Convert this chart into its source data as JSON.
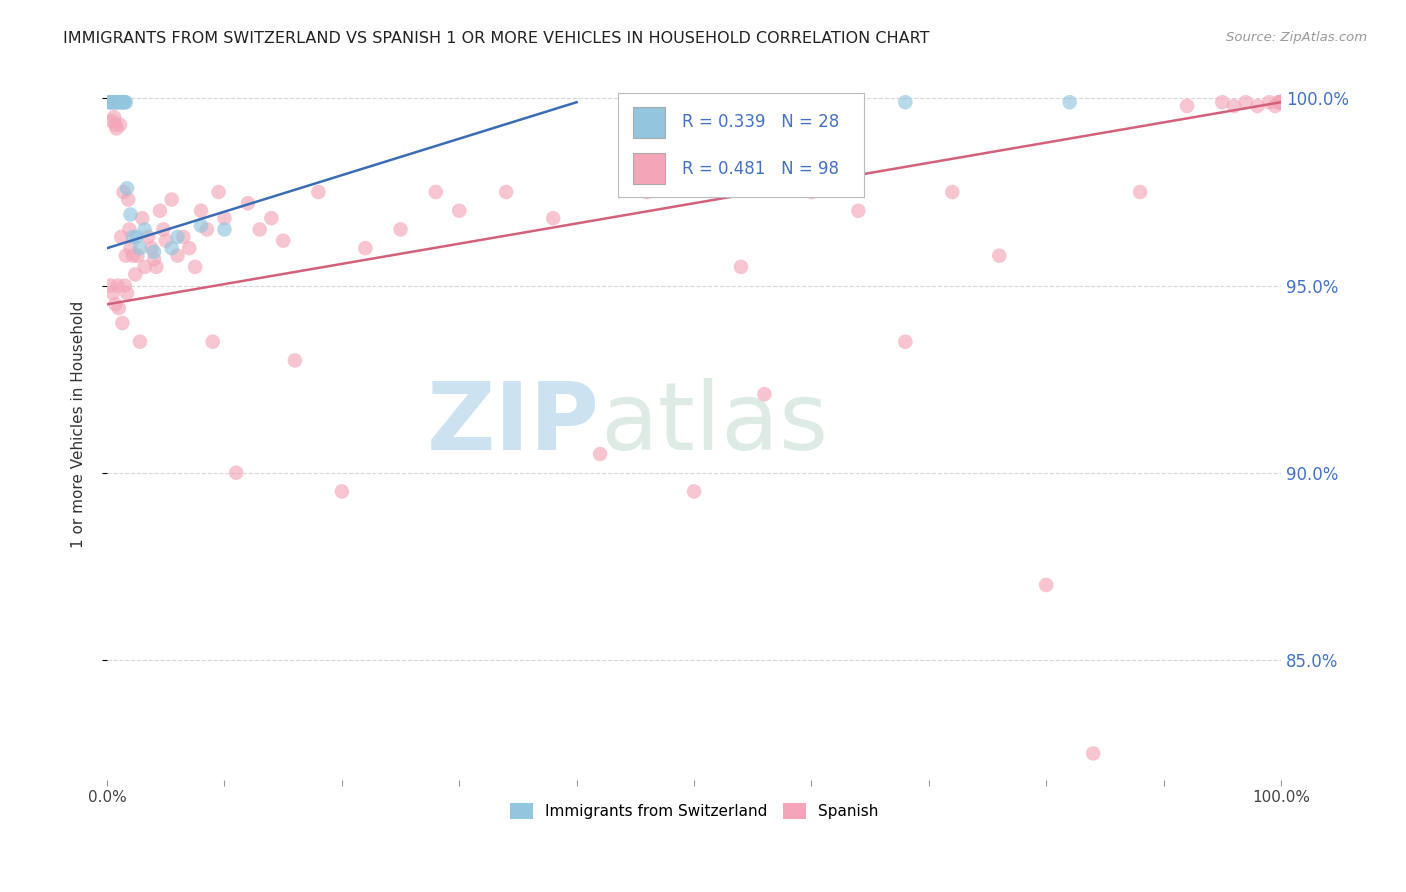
{
  "title": "IMMIGRANTS FROM SWITZERLAND VS SPANISH 1 OR MORE VEHICLES IN HOUSEHOLD CORRELATION CHART",
  "source": "Source: ZipAtlas.com",
  "ylabel": "1 or more Vehicles in Household",
  "xlim": [
    0.0,
    1.0
  ],
  "ylim": [
    0.818,
    1.008
  ],
  "yticks": [
    0.85,
    0.9,
    0.95,
    1.0
  ],
  "ytick_labels": [
    "85.0%",
    "90.0%",
    "95.0%",
    "100.0%"
  ],
  "blue_R": 0.339,
  "blue_N": 28,
  "pink_R": 0.481,
  "pink_N": 98,
  "blue_color": "#92c5de",
  "pink_color": "#f4a6b8",
  "blue_line_color": "#3a6db5",
  "pink_line_color": "#d4607a",
  "background_color": "white",
  "grid_color": "#cccccc",
  "blue_scatter_x": [
    0.002,
    0.003,
    0.004,
    0.005,
    0.006,
    0.007,
    0.008,
    0.009,
    0.01,
    0.011,
    0.012,
    0.013,
    0.014,
    0.015,
    0.016,
    0.017,
    0.02,
    0.022,
    0.025,
    0.028,
    0.032,
    0.04,
    0.055,
    0.06,
    0.08,
    0.1,
    0.68,
    0.82
  ],
  "blue_scatter_y": [
    0.999,
    0.999,
    0.999,
    0.999,
    0.999,
    0.999,
    0.999,
    0.999,
    0.999,
    0.999,
    0.999,
    0.999,
    0.999,
    0.999,
    0.999,
    0.976,
    0.969,
    0.963,
    0.963,
    0.96,
    0.965,
    0.959,
    0.96,
    0.963,
    0.966,
    0.965,
    0.999,
    0.999
  ],
  "pink_scatter_x": [
    0.002,
    0.003,
    0.004,
    0.005,
    0.006,
    0.007,
    0.007,
    0.008,
    0.009,
    0.01,
    0.011,
    0.012,
    0.013,
    0.014,
    0.015,
    0.016,
    0.017,
    0.018,
    0.019,
    0.02,
    0.022,
    0.024,
    0.026,
    0.028,
    0.03,
    0.032,
    0.035,
    0.038,
    0.04,
    0.042,
    0.045,
    0.048,
    0.05,
    0.055,
    0.06,
    0.065,
    0.07,
    0.075,
    0.08,
    0.085,
    0.09,
    0.095,
    0.1,
    0.11,
    0.12,
    0.13,
    0.14,
    0.15,
    0.16,
    0.18,
    0.2,
    0.22,
    0.25,
    0.28,
    0.3,
    0.34,
    0.38,
    0.42,
    0.46,
    0.5,
    0.54,
    0.56,
    0.6,
    0.64,
    0.68,
    0.72,
    0.76,
    0.8,
    0.84,
    0.88,
    0.92,
    0.95,
    0.96,
    0.97,
    0.98,
    0.99,
    0.995,
    0.998,
    1.0,
    1.0,
    1.0,
    1.0,
    1.0,
    1.0,
    1.0,
    1.0,
    1.0,
    1.0,
    1.0,
    1.0,
    1.0,
    1.0,
    1.0,
    1.0,
    1.0,
    1.0,
    1.0,
    1.0
  ],
  "pink_scatter_y": [
    0.999,
    0.95,
    0.994,
    0.948,
    0.995,
    0.945,
    0.993,
    0.992,
    0.95,
    0.944,
    0.993,
    0.963,
    0.94,
    0.975,
    0.95,
    0.958,
    0.948,
    0.973,
    0.965,
    0.96,
    0.958,
    0.953,
    0.958,
    0.935,
    0.968,
    0.955,
    0.963,
    0.96,
    0.957,
    0.955,
    0.97,
    0.965,
    0.962,
    0.973,
    0.958,
    0.963,
    0.96,
    0.955,
    0.97,
    0.965,
    0.935,
    0.975,
    0.968,
    0.9,
    0.972,
    0.965,
    0.968,
    0.962,
    0.93,
    0.975,
    0.895,
    0.96,
    0.965,
    0.975,
    0.97,
    0.975,
    0.968,
    0.905,
    0.975,
    0.895,
    0.955,
    0.921,
    0.975,
    0.97,
    0.935,
    0.975,
    0.958,
    0.87,
    0.825,
    0.975,
    0.998,
    0.999,
    0.998,
    0.999,
    0.998,
    0.999,
    0.998,
    0.999,
    0.999,
    0.999,
    0.999,
    0.999,
    0.999,
    0.999,
    0.999,
    0.999,
    0.999,
    0.999,
    0.999,
    0.999,
    0.999,
    0.999,
    0.999,
    0.999,
    0.999,
    0.999,
    0.999,
    0.999
  ],
  "blue_trend_x": [
    0.0,
    0.4
  ],
  "blue_trend_y": [
    0.96,
    0.999
  ],
  "pink_trend_x": [
    0.0,
    1.0
  ],
  "pink_trend_y": [
    0.945,
    0.999
  ]
}
